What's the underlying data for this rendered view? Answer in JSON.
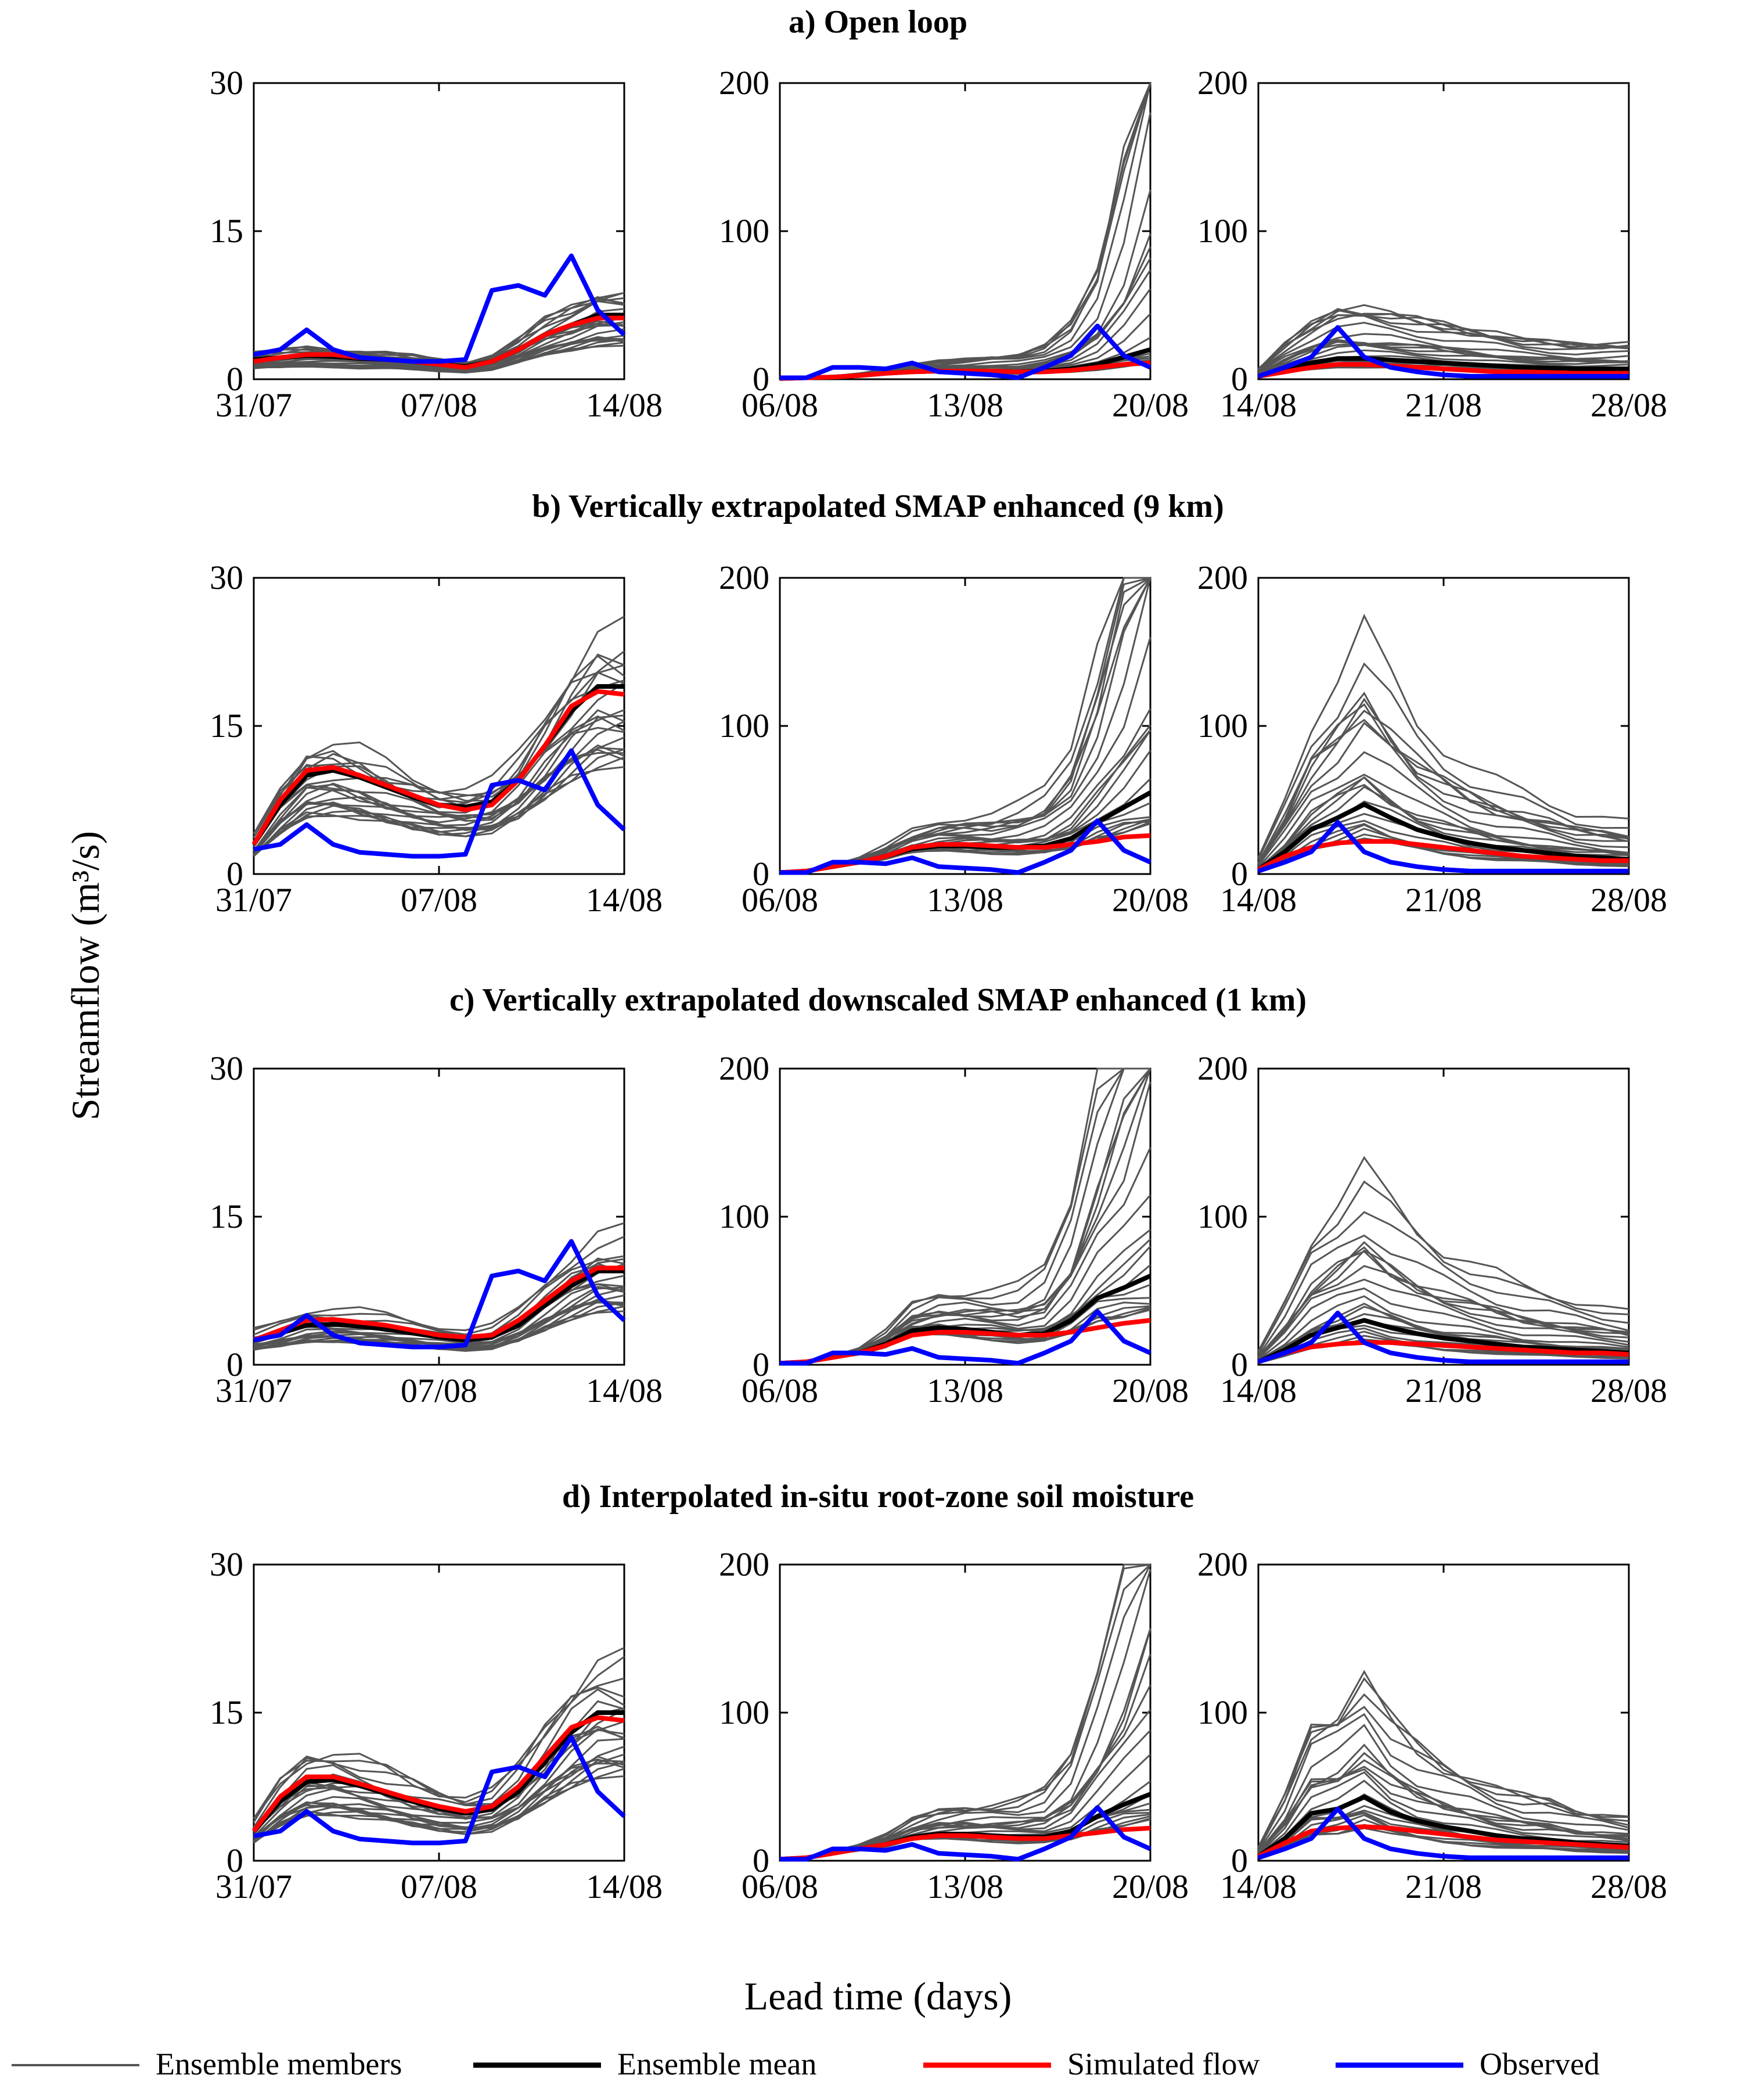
{
  "figure": {
    "ylabel": "Streamflow (m³/s)",
    "xlabel": "Lead time (days)"
  },
  "legend": [
    {
      "label": "Ensemble members",
      "color": "#555555",
      "role": "members"
    },
    {
      "label": "Ensemble mean",
      "color": "#000000",
      "role": "mean"
    },
    {
      "label": "Simulated flow",
      "color": "#ff0000",
      "role": "sim"
    },
    {
      "label": "Observed",
      "color": "#0000ff",
      "role": "obs"
    }
  ],
  "chart_data": [
    {
      "type": "line",
      "title": "a) Open loop",
      "panels": [
        {
          "ylim": [
            0,
            30
          ],
          "yticks": [
            "0",
            "15",
            "30"
          ],
          "xticks": [
            "31/07",
            "07/08",
            "14/08"
          ],
          "observed": [
            2.5,
            3,
            5,
            3,
            2.2,
            2,
            1.8,
            1.8,
            2,
            9,
            9.5,
            8.5,
            12.5,
            7,
            4.5
          ],
          "simulated": [
            1.8,
            2.2,
            2.5,
            2.5,
            2.2,
            2,
            1.8,
            1.5,
            1.2,
            1.8,
            3,
            4.5,
            5.5,
            6.2,
            6.2
          ],
          "mean": [
            2,
            2.2,
            2.4,
            2.3,
            2.1,
            2,
            1.8,
            1.5,
            1.3,
            1.8,
            3,
            4.5,
            5.5,
            6.5,
            6.5
          ],
          "members": {
            "count": 22,
            "maxScale": 1.5,
            "minScale": 0.55,
            "powMax": 0
          }
        },
        {
          "ylim": [
            0,
            200
          ],
          "yticks": [
            "0",
            "100",
            "200"
          ],
          "xticks": [
            "06/08",
            "13/08",
            "20/08"
          ],
          "observed": [
            1,
            1,
            8,
            8,
            7,
            11,
            5,
            4,
            3,
            1,
            8,
            16,
            36,
            16,
            8
          ],
          "simulated": [
            0.5,
            1,
            1.5,
            2.5,
            4,
            5,
            5.5,
            5.5,
            5.5,
            5,
            5,
            6,
            8,
            10,
            11
          ],
          "mean": [
            0.5,
            1,
            1.5,
            2.5,
            4,
            5,
            5.5,
            5.5,
            5.5,
            5,
            5.5,
            7,
            10,
            15,
            20
          ],
          "members": {
            "count": 22,
            "maxScale": 4.5,
            "minScale": 0.6,
            "powMax": 5
          }
        },
        {
          "ylim": [
            0,
            200
          ],
          "yticks": [
            "0",
            "100",
            "200"
          ],
          "xticks": [
            "14/08",
            "21/08",
            "28/08"
          ],
          "observed": [
            2,
            8,
            15,
            35,
            15,
            8,
            5,
            3,
            2,
            2,
            2,
            2,
            2,
            2,
            2
          ],
          "simulated": [
            2,
            5,
            8,
            10,
            10,
            9,
            8,
            7,
            6,
            5,
            5,
            4.5,
            4,
            4,
            4
          ],
          "mean": [
            2,
            7,
            11,
            14,
            14,
            13,
            12,
            11,
            10,
            9,
            8,
            7.5,
            7,
            7,
            7
          ],
          "members": {
            "count": 22,
            "maxScale": 4.2,
            "minScale": 0.6,
            "powMax": 0
          }
        }
      ]
    },
    {
      "type": "line",
      "title": "b) Vertically extrapolated SMAP enhanced (9 km)",
      "panels": [
        {
          "ylim": [
            0,
            30
          ],
          "yticks": [
            "0",
            "15",
            "30"
          ],
          "xticks": [
            "31/07",
            "07/08",
            "14/08"
          ],
          "observed": [
            2.5,
            3,
            5,
            3,
            2.2,
            2,
            1.8,
            1.8,
            2,
            9,
            9.5,
            8.5,
            12.5,
            7,
            4.5
          ],
          "simulated": [
            3,
            7.5,
            10.5,
            10.8,
            10,
            9,
            8,
            7,
            6.5,
            7,
            9.5,
            13,
            17,
            18.5,
            18.2
          ],
          "mean": [
            3,
            7,
            10,
            10.5,
            9.8,
            8.8,
            7.8,
            7,
            6.8,
            7.3,
            9.5,
            13,
            16.5,
            19,
            19
          ],
          "members": {
            "count": 22,
            "maxScale": 1.35,
            "minScale": 0.6,
            "powMax": 0
          }
        },
        {
          "ylim": [
            0,
            200
          ],
          "yticks": [
            "0",
            "100",
            "200"
          ],
          "xticks": [
            "06/08",
            "13/08",
            "20/08"
          ],
          "observed": [
            1,
            1,
            8,
            8,
            7,
            11,
            5,
            4,
            3,
            1,
            8,
            16,
            36,
            16,
            8
          ],
          "simulated": [
            1,
            2,
            5,
            8,
            12,
            18,
            20,
            20,
            19,
            18,
            18,
            20,
            22,
            25,
            26
          ],
          "mean": [
            1,
            2,
            5,
            8,
            12,
            17,
            19,
            19,
            18,
            18,
            19,
            24,
            35,
            45,
            55
          ],
          "members": {
            "count": 22,
            "maxScale": 3.2,
            "minScale": 0.65,
            "powMax": 3
          }
        },
        {
          "ylim": [
            0,
            200
          ],
          "yticks": [
            "0",
            "100",
            "200"
          ],
          "xticks": [
            "14/08",
            "21/08",
            "28/08"
          ],
          "observed": [
            2,
            8,
            15,
            35,
            15,
            8,
            5,
            3,
            2,
            2,
            2,
            2,
            2,
            2,
            2
          ],
          "simulated": [
            3,
            12,
            18,
            21,
            22,
            22,
            20,
            18,
            16,
            14,
            12,
            11,
            10,
            9,
            9
          ],
          "mean": [
            3,
            15,
            30,
            38,
            47,
            38,
            30,
            25,
            21,
            18,
            16,
            14,
            12,
            11,
            10
          ],
          "members": {
            "count": 22,
            "maxScale": 3.6,
            "minScale": 0.55,
            "powMax": 0
          }
        }
      ]
    },
    {
      "type": "line",
      "title": "c) Vertically extrapolated downscaled SMAP enhanced (1 km)",
      "panels": [
        {
          "ylim": [
            0,
            30
          ],
          "yticks": [
            "0",
            "15",
            "30"
          ],
          "xticks": [
            "31/07",
            "07/08",
            "14/08"
          ],
          "observed": [
            2.5,
            3,
            5,
            3,
            2.2,
            2,
            1.8,
            1.8,
            2,
            9,
            9.5,
            8.5,
            12.5,
            7,
            4.5
          ],
          "simulated": [
            2.5,
            3.5,
            4.5,
            4.6,
            4.3,
            4,
            3.5,
            3,
            2.8,
            3,
            4.5,
            6.5,
            8.5,
            9.8,
            9.8
          ],
          "mean": [
            2.5,
            3.2,
            4,
            4.1,
            3.9,
            3.6,
            3.2,
            2.8,
            2.5,
            2.8,
            4,
            6,
            8,
            9.5,
            9.5
          ],
          "members": {
            "count": 22,
            "maxScale": 1.4,
            "minScale": 0.6,
            "powMax": 0
          }
        },
        {
          "ylim": [
            0,
            200
          ],
          "yticks": [
            "0",
            "100",
            "200"
          ],
          "xticks": [
            "06/08",
            "13/08",
            "20/08"
          ],
          "observed": [
            1,
            1,
            8,
            8,
            7,
            11,
            5,
            4,
            3,
            1,
            8,
            16,
            36,
            16,
            8
          ],
          "simulated": [
            1,
            2,
            5,
            8,
            13,
            20,
            22,
            22,
            21,
            20,
            20,
            22,
            25,
            28,
            30
          ],
          "mean": [
            1,
            2,
            5,
            8,
            14,
            23,
            25,
            24,
            22,
            20,
            21,
            30,
            45,
            52,
            60
          ],
          "members": {
            "count": 22,
            "maxScale": 3.1,
            "minScale": 0.65,
            "powMax": 3
          }
        },
        {
          "ylim": [
            0,
            200
          ],
          "yticks": [
            "0",
            "100",
            "200"
          ],
          "xticks": [
            "14/08",
            "21/08",
            "28/08"
          ],
          "observed": [
            2,
            8,
            15,
            35,
            15,
            8,
            5,
            3,
            2,
            2,
            2,
            2,
            2,
            2,
            2
          ],
          "simulated": [
            2,
            8,
            12,
            14,
            15,
            15,
            14,
            13,
            12,
            11,
            10,
            9,
            8,
            8,
            7
          ],
          "mean": [
            2,
            10,
            20,
            25,
            30,
            25,
            21,
            18,
            16,
            14,
            12,
            11,
            10,
            9,
            8
          ],
          "members": {
            "count": 22,
            "maxScale": 4.4,
            "minScale": 0.55,
            "powMax": 0
          }
        }
      ]
    },
    {
      "type": "line",
      "title": "d) Interpolated in-situ root-zone soil moisture",
      "panels": [
        {
          "ylim": [
            0,
            30
          ],
          "yticks": [
            "0",
            "15",
            "30"
          ],
          "xticks": [
            "31/07",
            "07/08",
            "14/08"
          ],
          "observed": [
            2.5,
            3,
            5,
            3,
            2.2,
            2,
            1.8,
            1.8,
            2,
            9,
            9.5,
            8.5,
            12.5,
            7,
            4.5
          ],
          "simulated": [
            3,
            6.5,
            8.5,
            8.5,
            7.8,
            7,
            6.2,
            5.5,
            5,
            5.5,
            7.5,
            10.5,
            13.5,
            14.5,
            14.2
          ],
          "mean": [
            3,
            6,
            8,
            8.2,
            7.6,
            6.8,
            6,
            5.3,
            4.8,
            5.2,
            7,
            10,
            13,
            15,
            15
          ],
          "members": {
            "count": 22,
            "maxScale": 1.4,
            "minScale": 0.6,
            "powMax": 0
          }
        },
        {
          "ylim": [
            0,
            200
          ],
          "yticks": [
            "0",
            "100",
            "200"
          ],
          "xticks": [
            "06/08",
            "13/08",
            "20/08"
          ],
          "observed": [
            1,
            1,
            8,
            8,
            7,
            11,
            5,
            4,
            3,
            1,
            8,
            16,
            36,
            16,
            8
          ],
          "simulated": [
            1,
            2,
            5,
            8,
            11,
            15,
            17,
            17,
            16,
            15,
            15,
            17,
            19,
            21,
            22
          ],
          "mean": [
            1,
            2,
            5,
            8,
            11,
            16,
            18,
            18,
            17,
            16,
            16,
            20,
            30,
            38,
            45
          ],
          "members": {
            "count": 22,
            "maxScale": 3.2,
            "minScale": 0.65,
            "powMax": 3
          }
        },
        {
          "ylim": [
            0,
            200
          ],
          "yticks": [
            "0",
            "100",
            "200"
          ],
          "xticks": [
            "14/08",
            "21/08",
            "28/08"
          ],
          "observed": [
            2,
            8,
            15,
            35,
            15,
            8,
            5,
            3,
            2,
            2,
            2,
            2,
            2,
            2,
            2
          ],
          "simulated": [
            3,
            12,
            20,
            22,
            23,
            22,
            20,
            18,
            16,
            14,
            13,
            12,
            11,
            10,
            9
          ],
          "mean": [
            3,
            15,
            32,
            35,
            43,
            33,
            27,
            23,
            20,
            17,
            15,
            14,
            12,
            11,
            10
          ],
          "members": {
            "count": 22,
            "maxScale": 3.2,
            "minScale": 0.55,
            "powMax": 0
          }
        }
      ]
    }
  ]
}
